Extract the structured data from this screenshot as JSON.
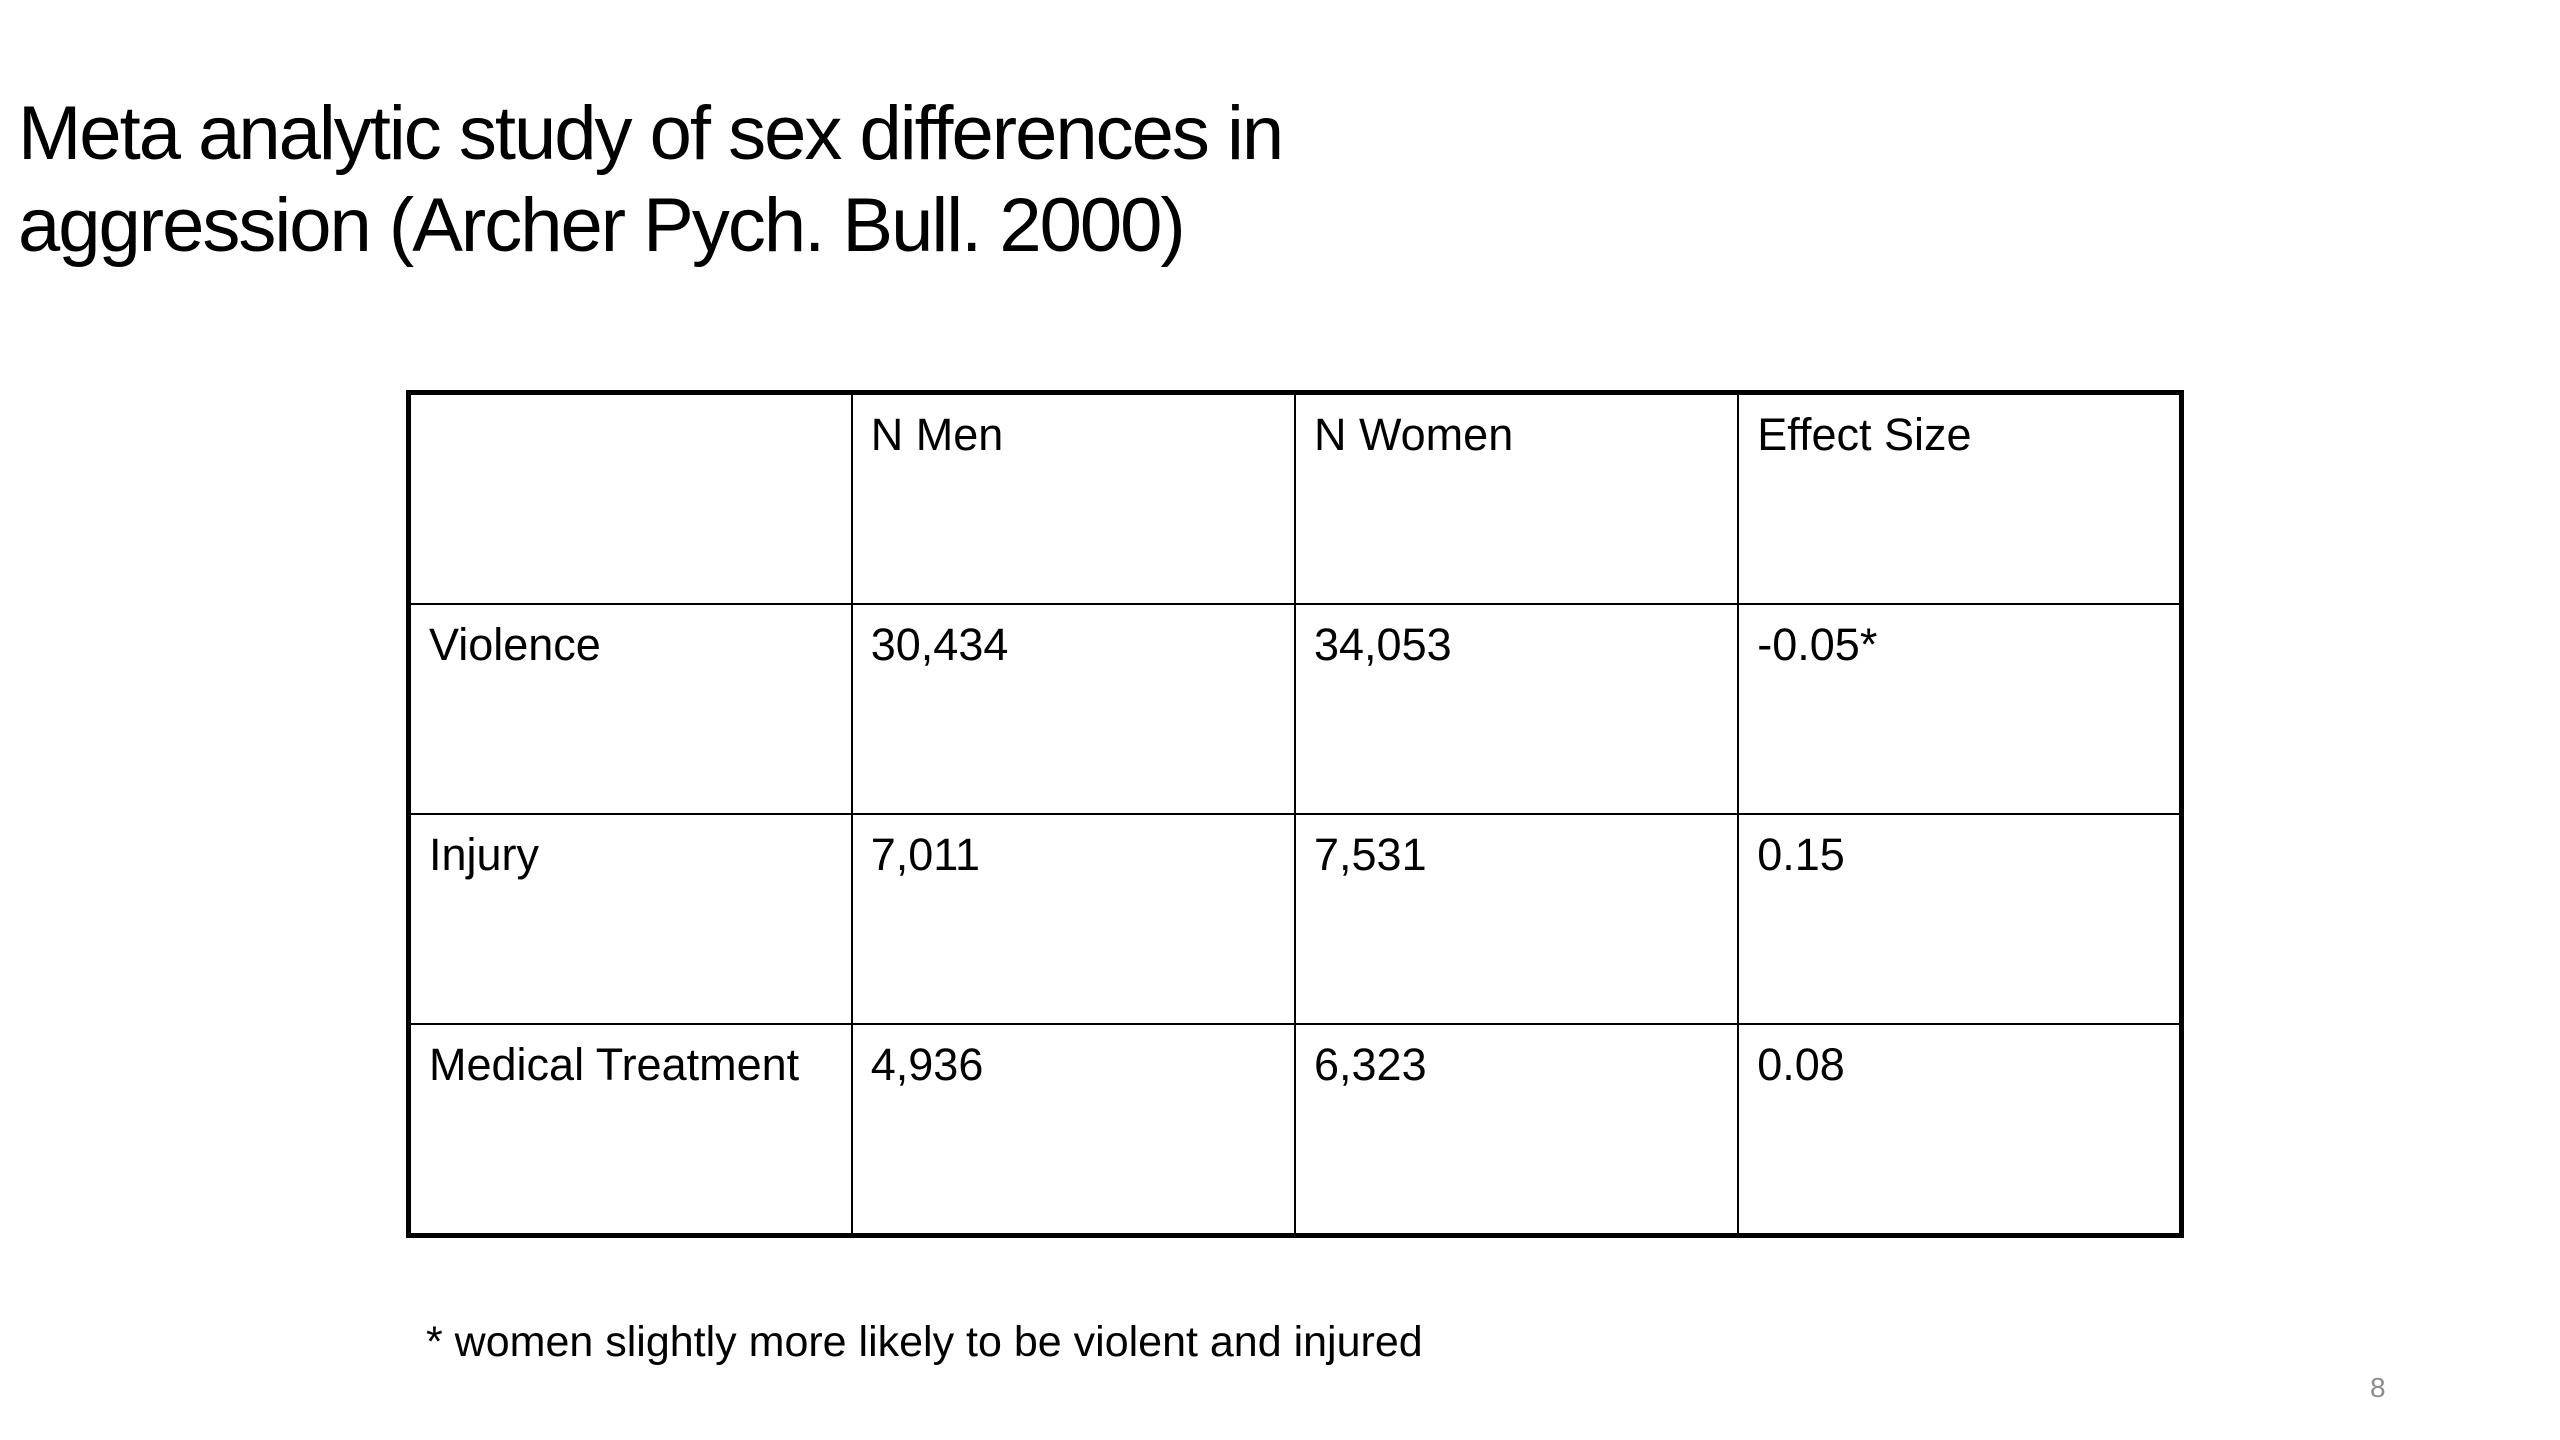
{
  "slide": {
    "title_lines": [
      "Meta analytic study of sex differences in",
      "aggression (Archer Pych. Bull. 2000)"
    ],
    "table": {
      "headers": [
        "",
        "N Men",
        "N Women",
        "Effect Size"
      ],
      "rows": [
        [
          "Violence",
          "30,434",
          "34,053",
          "-0.05*"
        ],
        [
          "Injury",
          "7,011",
          "7,531",
          "0.15"
        ],
        [
          "Medical Treatment",
          "4,936",
          "6,323",
          "0.08"
        ]
      ]
    },
    "footnote": "* women slightly more likely to be violent and injured",
    "page_number": "8"
  }
}
